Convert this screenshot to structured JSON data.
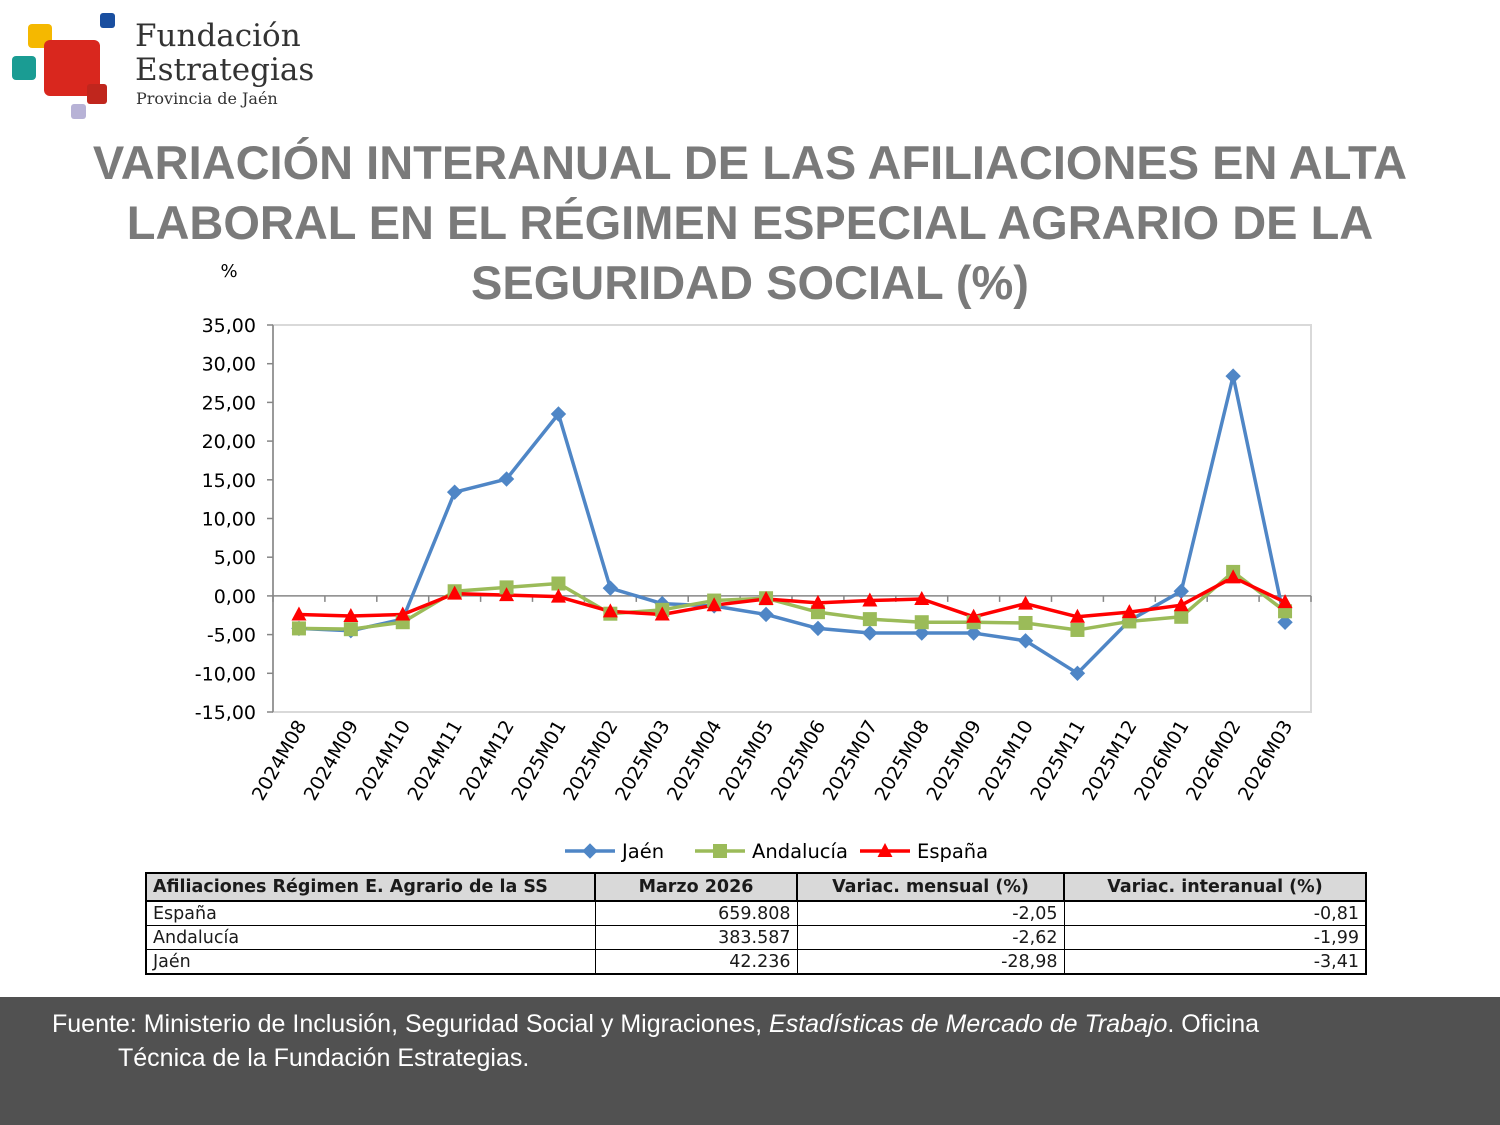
{
  "logo": {
    "line1": "Fundación",
    "line2": "Estrategias",
    "line3": "Provincia de Jaén",
    "colors": {
      "yellow": "#f5b800",
      "teal": "#1a9c93",
      "red": "#d9271e",
      "blue": "#1a4fa0",
      "lilac": "#b7b2d6",
      "darkred": "#c0261d"
    }
  },
  "title": {
    "line1": "VARIACIÓN INTERANUAL DE LAS AFILIACIONES EN ALTA",
    "line2": "LABORAL EN EL RÉGIMEN ESPECIAL AGRARIO DE LA",
    "line3": "SEGURIDAD SOCIAL (%)"
  },
  "chart_data": {
    "type": "line",
    "ylabel": "%",
    "ylim": [
      -15,
      35
    ],
    "yticks": [
      "35,00",
      "30,00",
      "25,00",
      "20,00",
      "15,00",
      "10,00",
      "5,00",
      "0,00",
      "-5,00",
      "-10,00",
      "-15,00"
    ],
    "categories": [
      "2024M08",
      "2024M09",
      "2024M10",
      "2024M11",
      "2024M12",
      "2025M01",
      "2025M02",
      "2025M03",
      "2025M04",
      "2025M05",
      "2025M06",
      "2025M07",
      "2025M08",
      "2025M09",
      "2025M10",
      "2025M11",
      "2025M12",
      "2026M01",
      "2026M02",
      "2026M03"
    ],
    "series": [
      {
        "name": "Jaén",
        "color": "#4f86c6",
        "marker": "diamond",
        "values": [
          -4.2,
          -4.5,
          -3.0,
          13.4,
          15.1,
          23.5,
          1.0,
          -1.0,
          -1.3,
          -2.4,
          -4.2,
          -4.8,
          -4.8,
          -4.8,
          -5.8,
          -10.0,
          -3.2,
          0.6,
          28.4,
          -3.41
        ]
      },
      {
        "name": "Andalucía",
        "color": "#9bbb59",
        "marker": "square",
        "values": [
          -4.2,
          -4.3,
          -3.4,
          0.6,
          1.1,
          1.6,
          -2.3,
          -1.8,
          -0.6,
          -0.3,
          -2.1,
          -3.0,
          -3.4,
          -3.4,
          -3.5,
          -4.4,
          -3.3,
          -2.7,
          3.1,
          -1.99
        ]
      },
      {
        "name": "España",
        "color": "#ff0000",
        "marker": "triangle",
        "values": [
          -2.4,
          -2.6,
          -2.4,
          0.3,
          0.1,
          -0.1,
          -2.0,
          -2.4,
          -1.2,
          -0.4,
          -0.9,
          -0.6,
          -0.4,
          -2.7,
          -1.0,
          -2.7,
          -2.1,
          -1.2,
          2.4,
          -0.81
        ]
      }
    ],
    "grid": false,
    "legend": "bottom"
  },
  "table": {
    "headers": [
      "Afiliaciones Régimen E. Agrario de la SS",
      "Marzo 2026",
      "Variac. mensual (%)",
      "Variac. interanual (%)"
    ],
    "rows": [
      [
        "España",
        "659.808",
        "-2,05",
        "-0,81"
      ],
      [
        "Andalucía",
        "383.587",
        "-2,62",
        "-1,99"
      ],
      [
        "Jaén",
        "42.236",
        "-28,98",
        "-3,41"
      ]
    ]
  },
  "footer": {
    "prefix": "Fuente: Ministerio de Inclusión, Seguridad Social y Migraciones, ",
    "italic": "Estadísticas de Mercado de Trabajo",
    "suffix": ". Oficina",
    "line2": "Técnica de la Fundación Estrategias."
  }
}
